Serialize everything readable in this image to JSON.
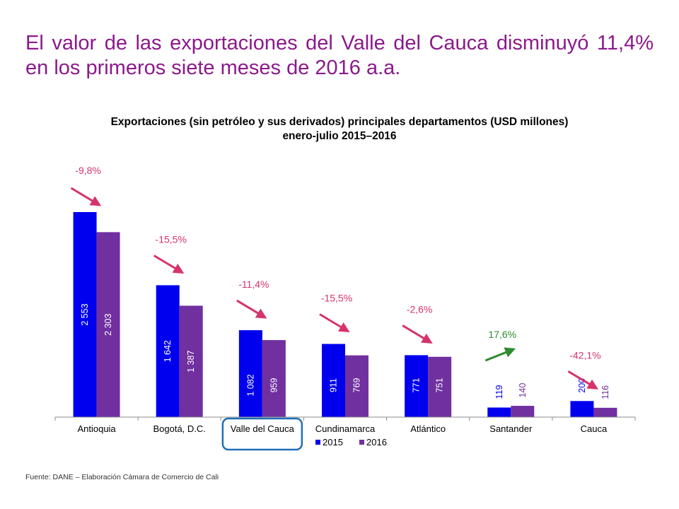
{
  "slide": {
    "title": "El valor de las exportaciones del Valle del Cauca disminuyó 11,4% en los primeros siete meses de 2016 a.a.",
    "footer": "Fuente: DANE – Elaboración Cámara de Comercio de Cali"
  },
  "colors": {
    "title": "#8B1A8B",
    "series_2015": "#0000EE",
    "series_2016": "#7030A0",
    "arrow_down": "#D6336C",
    "arrow_up": "#2E8B2E",
    "highlight": "#1F6FB5"
  },
  "chart_data": {
    "type": "bar",
    "title": "Exportaciones (sin petróleo y sus derivados) principales departamentos (USD millones)",
    "subtitle": "enero-julio 2015–2016",
    "categories": [
      "Antioquia",
      "Bogotá, D.C.",
      "Valle del Cauca",
      "Cundinamarca",
      "Atlántico",
      "Santander",
      "Cauca"
    ],
    "series": [
      {
        "name": "2015",
        "values": [
          2553,
          1642,
          1082,
          911,
          771,
          119,
          200
        ],
        "labels": [
          "2 553",
          "1 642",
          "1 082",
          "911",
          "771",
          "119",
          "200"
        ]
      },
      {
        "name": "2016",
        "values": [
          2303,
          1387,
          959,
          769,
          751,
          140,
          116
        ],
        "labels": [
          "2 303",
          "1 387",
          "959",
          "769",
          "751",
          "140",
          "116"
        ]
      }
    ],
    "changes": [
      "-9,8%",
      "-15,5%",
      "-11,4%",
      "-15,5%",
      "-2,6%",
      "17,6%",
      "-42,1%"
    ],
    "change_direction": [
      "down",
      "down",
      "down",
      "down",
      "down",
      "up",
      "down"
    ],
    "highlighted_category": "Valle del Cauca",
    "ylim": [
      0,
      2700
    ],
    "grid": false,
    "legend_position": "bottom"
  }
}
